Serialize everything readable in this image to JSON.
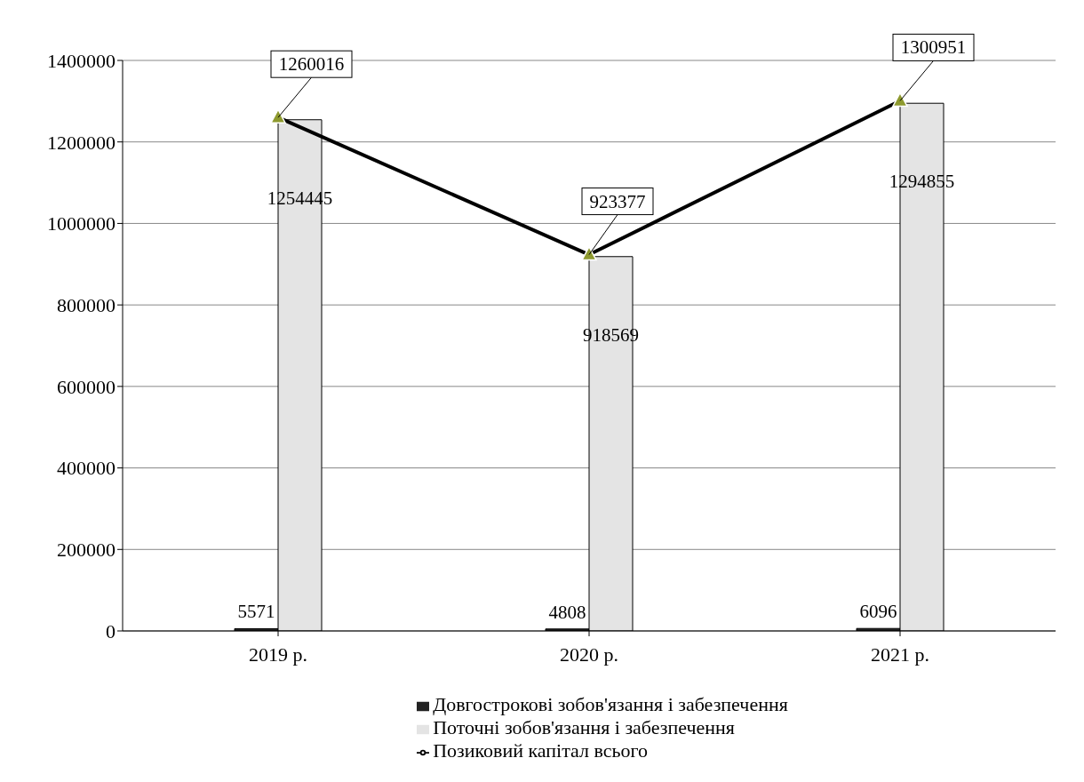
{
  "chart_data": {
    "type": "bar",
    "categories": [
      "2019 р.",
      "2020 р.",
      "2021 р."
    ],
    "series": [
      {
        "name": "Довгострокові зобов'язання і забезпечення",
        "color": "#222222",
        "values": [
          5571,
          4808,
          6096
        ]
      },
      {
        "name": "Поточні зобов'язання і забезпечення",
        "color": "#e4e4e4",
        "values": [
          1254445,
          918569,
          1294855
        ]
      },
      {
        "name": "Позиковий капітал всього",
        "type": "line",
        "color": "#000000",
        "marker": "triangle",
        "values": [
          1260016,
          923377,
          1300951
        ]
      }
    ],
    "ylim": [
      0,
      1400000
    ],
    "yticks": [
      0,
      200000,
      400000,
      600000,
      800000,
      1000000,
      1200000,
      1400000
    ],
    "grid": "y",
    "legend": "bottom",
    "data_labels": true
  }
}
